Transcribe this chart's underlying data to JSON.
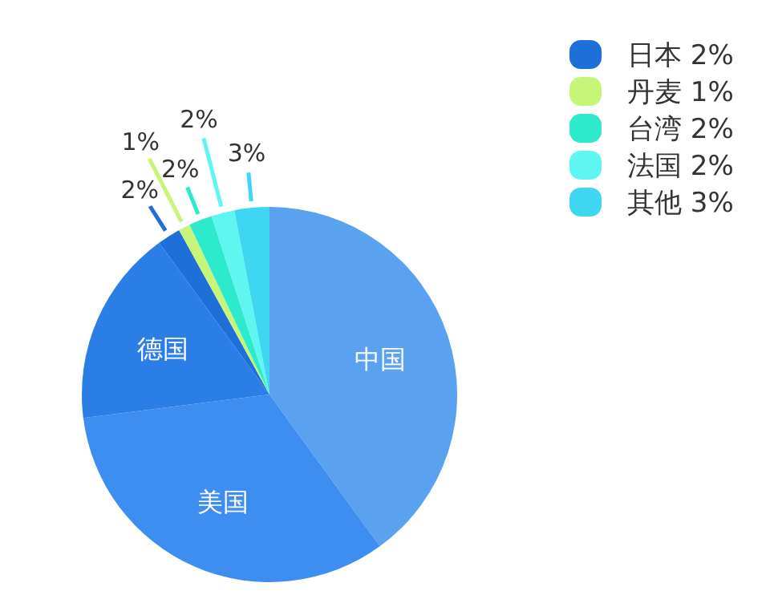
{
  "chart_data": {
    "type": "pie",
    "categories": [
      "中国",
      "美国",
      "德国",
      "日本",
      "丹麦",
      "台湾",
      "法国",
      "其他"
    ],
    "values": [
      40,
      33,
      17,
      2,
      1,
      2,
      2,
      3
    ],
    "colors": [
      "#5aa2f0",
      "#3d8ef0",
      "#2a7ee6",
      "#1f6fd8",
      "#c6f57a",
      "#2eeacc",
      "#5ff5f0",
      "#3fd6f2"
    ],
    "value_labels": [
      null,
      null,
      null,
      "2%",
      "1%",
      "2%",
      "2%",
      "3%"
    ],
    "legend": "top right"
  }
}
